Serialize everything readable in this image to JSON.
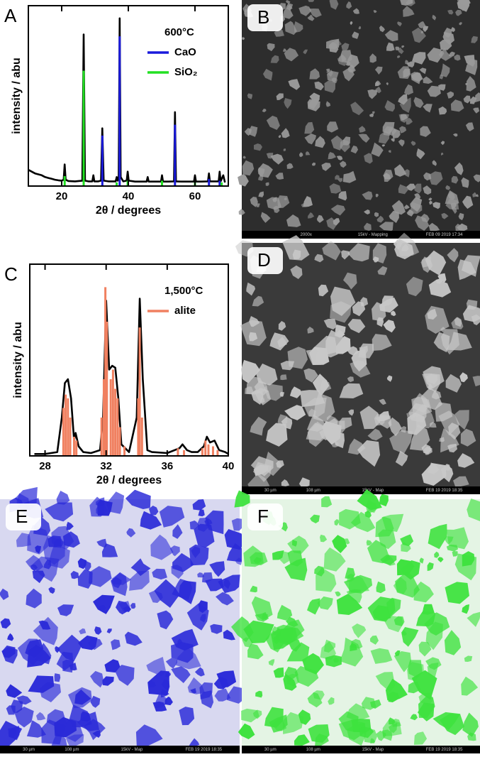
{
  "chart_data": [
    {
      "type": "line",
      "panel": "A",
      "xlabel": "2θ / degrees",
      "ylabel": "intensity / abu",
      "xlim": [
        10,
        70
      ],
      "xticks": [
        20,
        40,
        60
      ],
      "ylim": [
        0,
        100
      ],
      "legend_title": "600°C",
      "legend": "top-right",
      "series": [
        {
          "kind": "line",
          "color": "#000000",
          "x": [
            10,
            11,
            12,
            13,
            14,
            15,
            16,
            17,
            18,
            19,
            20,
            20.6,
            20.9,
            21.2,
            22,
            24,
            26.2,
            26.6,
            27,
            28,
            29.2,
            29.5,
            29.8,
            31,
            31.8,
            32.2,
            32.6,
            34,
            36.2,
            36.5,
            36.8,
            37.1,
            37.4,
            37.7,
            38.5,
            39.5,
            39.8,
            40.1,
            42,
            45.5,
            45.8,
            46.1,
            49.8,
            50.1,
            50.4,
            52,
            53.7,
            54,
            54.3,
            56,
            59.7,
            60,
            60.3,
            62,
            63.9,
            64.2,
            64.5,
            66,
            67.1,
            67.4,
            67.7,
            68.5,
            69
          ],
          "values": [
            9,
            8,
            7,
            6.5,
            6,
            5,
            4.5,
            4,
            3.5,
            3.2,
            3,
            3.5,
            12,
            3.5,
            2.8,
            2.6,
            3,
            84,
            3,
            2.6,
            2.6,
            6,
            2.6,
            2.6,
            3,
            32,
            3,
            2.6,
            2.6,
            5,
            3,
            5,
            93,
            5,
            2.6,
            3,
            8,
            3,
            2.5,
            2.5,
            5,
            2.5,
            2.5,
            6,
            2.5,
            2.5,
            2.6,
            41,
            2.6,
            2.5,
            2.5,
            6,
            2.5,
            2.5,
            2.6,
            7,
            2.6,
            2.6,
            2.6,
            8,
            2.6,
            6,
            2
          ]
        },
        {
          "name": "CaO",
          "kind": "stick",
          "color": "#1a1adc",
          "x": [
            32.2,
            37.4,
            54,
            64.2,
            67.4
          ],
          "values": [
            28,
            83,
            34,
            4,
            3
          ]
        },
        {
          "name": "SiO₂",
          "kind": "stick",
          "color": "#22e022",
          "x": [
            20.9,
            26.6,
            36.5,
            39.8,
            50.1,
            60,
            68
          ],
          "values": [
            5.5,
            64,
            2,
            3,
            3,
            2,
            2
          ]
        }
      ]
    },
    {
      "type": "line",
      "panel": "C",
      "xlabel": "2θ / degrees",
      "ylabel": "intensity / abu",
      "xlim": [
        27,
        40
      ],
      "xticks": [
        28,
        32,
        36,
        40
      ],
      "ylim": [
        0,
        100
      ],
      "legend_title": "1,500°C",
      "legend": "top-right",
      "series": [
        {
          "kind": "line",
          "color": "#000000",
          "x": [
            27.3,
            28,
            28.8,
            29.1,
            29.3,
            29.5,
            29.7,
            29.9,
            30.0,
            30.2,
            30.5,
            31,
            31.6,
            31.8,
            32.0,
            32.2,
            32.4,
            32.6,
            32.8,
            33.0,
            33.5,
            34.0,
            34.2,
            34.4,
            34.7,
            35,
            36,
            36.8,
            37,
            37.3,
            37.6,
            38,
            38.4,
            38.6,
            38.8,
            39.1,
            39.4,
            39.8,
            40
          ],
          "values": [
            1,
            1,
            2,
            20,
            38,
            40,
            30,
            8,
            12,
            5,
            2,
            1.5,
            3,
            20,
            81,
            45,
            47,
            46,
            30,
            6,
            2,
            20,
            82,
            40,
            3,
            2,
            1.5,
            4,
            6,
            3,
            2,
            2,
            5,
            10,
            7,
            8,
            3,
            2,
            1
          ]
        },
        {
          "name": "alite",
          "kind": "stick",
          "color": "#f08060",
          "x": [
            29.2,
            29.35,
            29.5,
            29.65,
            29.9,
            30.05,
            31.7,
            31.85,
            31.95,
            32.05,
            32.3,
            32.45,
            32.6,
            32.75,
            32.9,
            33.2,
            34.1,
            34.2,
            34.35,
            36.7,
            37.1,
            38.3,
            38.5,
            38.7,
            39.0,
            39.3
          ],
          "values": [
            25,
            32,
            30,
            20,
            10,
            8,
            20,
            40,
            88,
            70,
            40,
            45,
            35,
            30,
            15,
            5,
            30,
            67,
            20,
            4,
            3,
            4,
            8,
            6,
            5,
            3
          ]
        }
      ]
    }
  ],
  "images": [
    {
      "panel": "B",
      "bar": [
        "2000x",
        "15kV - Mapping",
        "FEB 09 2019 17:34"
      ]
    },
    {
      "panel": "D",
      "bar": [
        "30 µm",
        "108 µm",
        "15kV - Map",
        "FEB 19 2019 18:35"
      ]
    },
    {
      "panel": "E",
      "bar": [
        "30 µm",
        "108 µm",
        "15kV - Map",
        "FEB 19 2019 18:35"
      ]
    },
    {
      "panel": "F",
      "bar": [
        "30 µm",
        "108 µm",
        "15kV - Map",
        "FEB 19 2019 18:35"
      ]
    }
  ]
}
